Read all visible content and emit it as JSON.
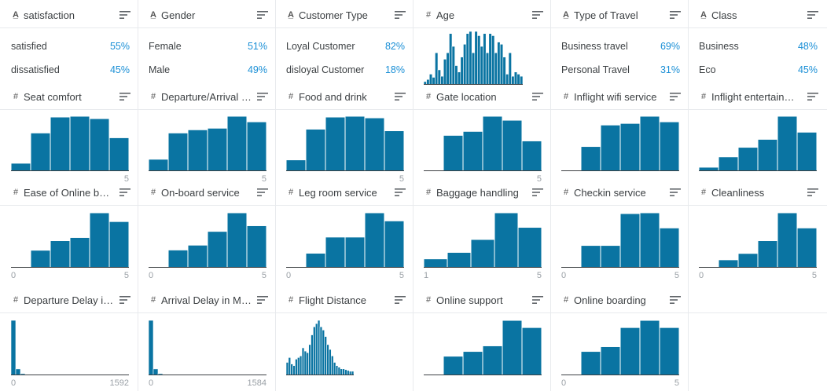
{
  "colors": {
    "bar": "#0a74a2",
    "bar_stroke": "#ffffff",
    "axis": "#3c4043",
    "pct": "#1a8fd6",
    "tick": "#9aa0a6"
  },
  "icons": {
    "string": "string-type-icon",
    "number": "number-type-icon",
    "menu": "column-menu-icon"
  },
  "columns": [
    {
      "name": "satisfaction",
      "type": "string",
      "kind": "categorical",
      "rows": [
        {
          "label": "satisfied",
          "pct": "55%"
        },
        {
          "label": "dissatisfied",
          "pct": "45%"
        }
      ]
    },
    {
      "name": "Gender",
      "type": "string",
      "kind": "categorical",
      "rows": [
        {
          "label": "Female",
          "pct": "51%"
        },
        {
          "label": "Male",
          "pct": "49%"
        }
      ]
    },
    {
      "name": "Customer Type",
      "type": "string",
      "kind": "categorical",
      "rows": [
        {
          "label": "Loyal Customer",
          "pct": "82%"
        },
        {
          "label": "disloyal Customer",
          "pct": "18%"
        }
      ]
    },
    {
      "name": "Age",
      "type": "number",
      "kind": "histogram",
      "chart_data": {
        "type": "bar",
        "values": [
          3,
          5,
          10,
          7,
          30,
          14,
          8,
          24,
          30,
          48,
          36,
          18,
          12,
          26,
          38,
          48,
          50,
          30,
          50,
          46,
          36,
          48,
          30,
          48,
          46,
          30,
          40,
          38,
          26,
          10,
          30,
          8,
          12,
          10,
          8
        ]
      },
      "min": "",
      "max": ""
    },
    {
      "name": "Type of Travel",
      "type": "string",
      "kind": "categorical",
      "rows": [
        {
          "label": "Business travel",
          "pct": "69%"
        },
        {
          "label": "Personal Travel",
          "pct": "31%"
        }
      ]
    },
    {
      "name": "Class",
      "type": "string",
      "kind": "categorical",
      "rows": [
        {
          "label": "Business",
          "pct": "48%"
        },
        {
          "label": "Eco",
          "pct": "45%"
        }
      ]
    },
    {
      "name": "Seat comfort",
      "type": "number",
      "kind": "histogram",
      "chart_data": {
        "type": "bar",
        "values": [
          10,
          48,
          68,
          69,
          66,
          42
        ]
      },
      "min": "",
      "max": "5"
    },
    {
      "name": "Departure/Arrival time convenient",
      "type": "number",
      "kind": "histogram",
      "chart_data": {
        "type": "bar",
        "values": [
          15,
          48,
          52,
          54,
          69,
          62
        ]
      },
      "min": "",
      "max": "5"
    },
    {
      "name": "Food and drink",
      "type": "number",
      "kind": "histogram",
      "chart_data": {
        "type": "bar",
        "values": [
          14,
          52,
          67,
          68,
          66,
          50
        ]
      },
      "min": "",
      "max": "5"
    },
    {
      "name": "Gate location",
      "type": "number",
      "kind": "histogram",
      "chart_data": {
        "type": "bar",
        "values": [
          0,
          45,
          50,
          69,
          64,
          38
        ]
      },
      "min": "",
      "max": "5"
    },
    {
      "name": "Inflight wifi service",
      "type": "number",
      "kind": "histogram",
      "chart_data": {
        "type": "bar",
        "values": [
          0,
          31,
          58,
          60,
          69,
          62
        ]
      },
      "min": "",
      "max": ""
    },
    {
      "name": "Inflight entertainment",
      "type": "number",
      "kind": "histogram",
      "chart_data": {
        "type": "bar",
        "values": [
          5,
          18,
          30,
          40,
          69,
          49
        ]
      },
      "min": "",
      "max": ""
    },
    {
      "name": "Ease of Online booking",
      "type": "number",
      "kind": "histogram",
      "chart_data": {
        "type": "bar",
        "values": [
          0,
          22,
          34,
          38,
          69,
          58
        ]
      },
      "min": "0",
      "max": "5"
    },
    {
      "name": "On-board service",
      "type": "number",
      "kind": "histogram",
      "chart_data": {
        "type": "bar",
        "values": [
          0,
          22,
          28,
          45,
          68,
          52
        ]
      },
      "min": "0",
      "max": "5"
    },
    {
      "name": "Leg room service",
      "type": "number",
      "kind": "histogram",
      "chart_data": {
        "type": "bar",
        "values": [
          0,
          18,
          38,
          38,
          68,
          58
        ]
      },
      "min": "0",
      "max": "5"
    },
    {
      "name": "Baggage handling",
      "type": "number",
      "kind": "histogram",
      "chart_data": {
        "type": "bar",
        "values": [
          11,
          19,
          35,
          68,
          50
        ]
      },
      "min": "1",
      "max": "5"
    },
    {
      "name": "Checkin service",
      "type": "number",
      "kind": "histogram",
      "chart_data": {
        "type": "bar",
        "values": [
          0,
          28,
          28,
          68,
          69,
          50
        ]
      },
      "min": "0",
      "max": "5"
    },
    {
      "name": "Cleanliness",
      "type": "number",
      "kind": "histogram",
      "chart_data": {
        "type": "bar",
        "values": [
          0,
          10,
          18,
          34,
          69,
          50
        ]
      },
      "min": "0",
      "max": "5"
    },
    {
      "name": "Departure Delay in Minutes",
      "type": "number",
      "kind": "histogram",
      "chart_data": {
        "type": "bar",
        "values": [
          69,
          8,
          2,
          1,
          0.5,
          0,
          0,
          0,
          0,
          0,
          0,
          0,
          0,
          0,
          0,
          0,
          0,
          0,
          0,
          0,
          0,
          0,
          0,
          0,
          0
        ]
      },
      "min": "0",
      "max": "1592"
    },
    {
      "name": "Arrival Delay in Minutes",
      "type": "number",
      "kind": "histogram",
      "chart_data": {
        "type": "bar",
        "values": [
          69,
          8,
          2,
          1,
          0.5,
          0,
          0,
          0,
          0,
          0,
          0,
          0,
          0,
          0,
          0,
          0,
          0,
          0,
          0,
          0,
          0,
          0,
          0,
          0,
          0
        ]
      },
      "min": "0",
      "max": "1584"
    },
    {
      "name": "Flight Distance",
      "type": "number",
      "kind": "histogram",
      "chart_data": {
        "type": "bar",
        "values": [
          16,
          22,
          14,
          12,
          20,
          22,
          24,
          34,
          30,
          28,
          38,
          50,
          60,
          64,
          68,
          60,
          56,
          48,
          38,
          32,
          24,
          16,
          12,
          10,
          8,
          8,
          7,
          6,
          5,
          5
        ]
      },
      "min": "",
      "max": ""
    },
    {
      "name": "Online support",
      "type": "number",
      "kind": "histogram",
      "chart_data": {
        "type": "bar",
        "values": [
          0,
          24,
          30,
          37,
          69,
          60
        ]
      },
      "min": "",
      "max": ""
    },
    {
      "name": "Online boarding",
      "type": "number",
      "kind": "histogram",
      "chart_data": {
        "type": "bar",
        "values": [
          0,
          30,
          36,
          60,
          69,
          60
        ]
      },
      "min": "0",
      "max": "5"
    }
  ]
}
